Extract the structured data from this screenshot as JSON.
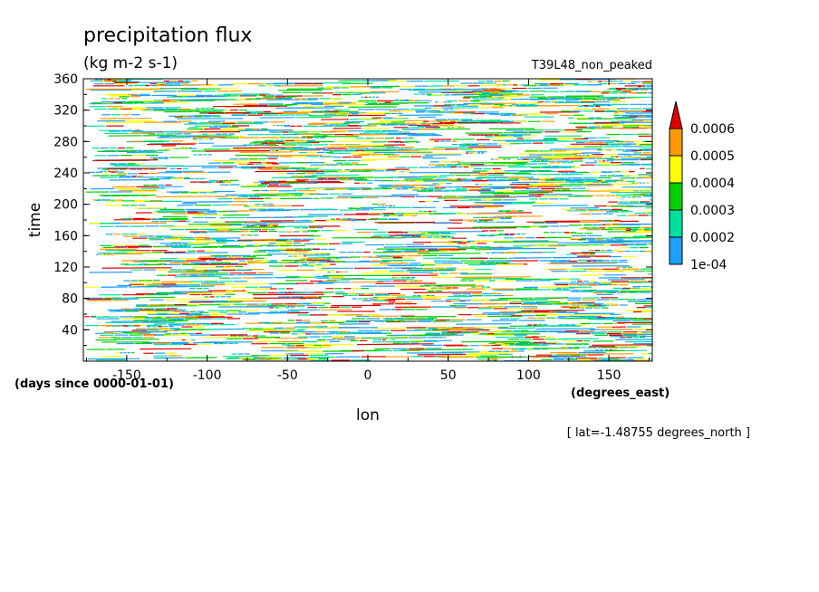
{
  "chart_data": {
    "type": "heatmap",
    "title": "precipitation flux",
    "units": "(kg m-2 s-1)",
    "run_label": "T39L48_non_peaked",
    "xlabel": "lon",
    "x_units": "(degrees_east)",
    "ylabel": "time",
    "y_units": "(days since 0000-01-01)",
    "xlim": [
      -177,
      177
    ],
    "ylim": [
      0,
      360
    ],
    "x_ticks": [
      "-150",
      "-100",
      "-50",
      "0",
      "50",
      "100",
      "150"
    ],
    "x_tick_values": [
      -150,
      -100,
      -50,
      0,
      50,
      100,
      150
    ],
    "y_ticks": [
      "40",
      "80",
      "120",
      "160",
      "200",
      "240",
      "280",
      "320",
      "360"
    ],
    "y_tick_values": [
      40,
      80,
      120,
      160,
      200,
      240,
      280,
      320,
      360
    ],
    "colorbar": {
      "levels": [
        "1e-04",
        "0.0002",
        "0.0003",
        "0.0004",
        "0.0005",
        "0.0006"
      ],
      "colors": [
        "#1ea0ff",
        "#00e0a0",
        "#00d000",
        "#ffff00",
        "#ff9900",
        "#e00000"
      ]
    },
    "footnote": "[ lat=-1.48755 degrees_north ]"
  }
}
